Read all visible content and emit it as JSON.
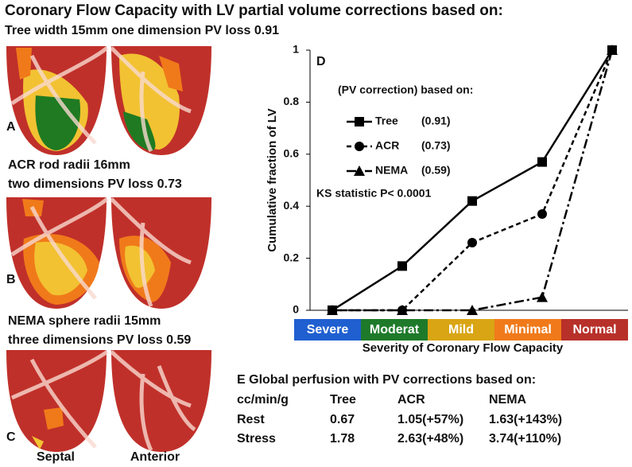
{
  "title": "Coronary Flow Capacity with LV partial volume corrections based on:",
  "panels": [
    {
      "label": "A",
      "caption": [
        "Tree width 15mm one dimension PV loss 0.91"
      ]
    },
    {
      "label": "B",
      "caption": [
        "ACR rod radii 16mm",
        "two dimensions PV loss 0.73"
      ]
    },
    {
      "label": "C",
      "caption": [
        "NEMA sphere radii 15mm",
        "three dimensions PV loss 0.59"
      ]
    }
  ],
  "region_labels": [
    "Septal",
    "Anterior"
  ],
  "chart_data": {
    "type": "line",
    "panel_label": "D",
    "ylabel": "Cumulative fraction of LV",
    "xlabel": "Severity of Coronary Flow Capacity",
    "categories": [
      "Severe",
      "Moderat",
      "Mild",
      "Minimal",
      "Normal"
    ],
    "category_colors": [
      "#1f5fd0",
      "#1e7a2a",
      "#d9a514",
      "#f07a1a",
      "#b8302a"
    ],
    "ylim": [
      0,
      1
    ],
    "yticks": [
      0,
      0.2,
      0.4,
      0.6,
      0.8,
      1
    ],
    "legend_title": "(PV correction) based on:",
    "annotation": "KS statistic P< 0.0001",
    "series": [
      {
        "name": "Tree",
        "legend_note": "(0.91)",
        "color": "#000000",
        "dash": "solid",
        "marker": "square",
        "values": [
          0,
          0.17,
          0.42,
          0.57,
          1
        ]
      },
      {
        "name": "ACR",
        "legend_note": "(0.73)",
        "color": "#000000",
        "dash": "dashed",
        "marker": "circle",
        "values": [
          0,
          0,
          0.26,
          0.37,
          1
        ]
      },
      {
        "name": "NEMA",
        "legend_note": "(0.59)",
        "color": "#000000",
        "dash": "dashdot",
        "marker": "triangle",
        "values": [
          0,
          0,
          0,
          0.05,
          1
        ]
      }
    ]
  },
  "table": {
    "title": "E Global perfusion with PV corrections based on:",
    "header": [
      "cc/min/g",
      "Tree",
      "ACR",
      "NEMA"
    ],
    "rows": [
      [
        "Rest",
        "0.67",
        "1.05(+57%)",
        "1.63(+143%)"
      ],
      [
        "Stress",
        "1.78",
        "2.63(+48%)",
        "3.74(+110%)"
      ]
    ]
  }
}
